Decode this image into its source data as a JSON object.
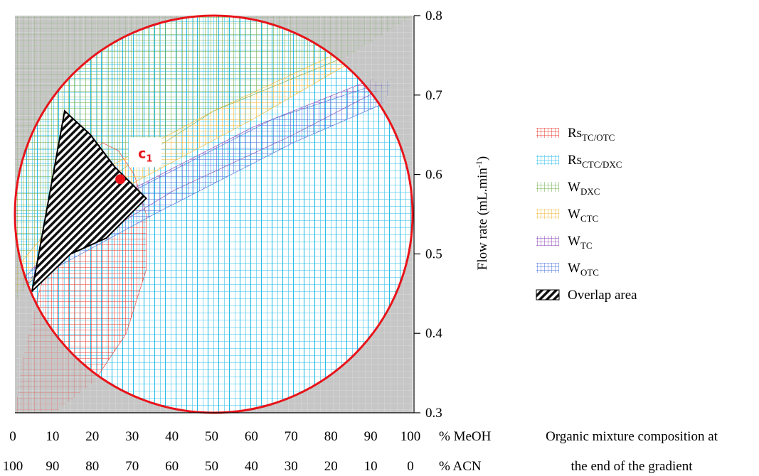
{
  "chart_data": {
    "type": "contour",
    "x_axis": {
      "title": "Organic mixture composition at the end of the gradient",
      "title_lines": [
        "Organic mixture composition at",
        "the end of the gradient"
      ],
      "primary_label": "% MeOH",
      "secondary_label": "% ACN",
      "range": [
        0,
        100
      ],
      "ticks": [
        0,
        10,
        20,
        30,
        40,
        50,
        60,
        70,
        80,
        90,
        100
      ],
      "primary_tick_labels": [
        "0",
        "10",
        "20",
        "30",
        "40",
        "50",
        "60",
        "70",
        "80",
        "90",
        "100"
      ],
      "secondary_tick_labels": [
        "100",
        "90",
        "80",
        "70",
        "60",
        "50",
        "40",
        "30",
        "20",
        "10",
        "0"
      ]
    },
    "y_axis": {
      "title_main": "Flow rate (mL.min",
      "title_sup": "-1",
      "title_end": ")",
      "range": [
        0.3,
        0.8
      ],
      "ticks": [
        0.3,
        0.4,
        0.5,
        0.6,
        0.7,
        0.8
      ],
      "tick_labels": [
        "0.3",
        "0.4",
        "0.5",
        "0.6",
        "0.7",
        "0.8"
      ],
      "position": "right"
    },
    "design_space": {
      "center": [
        50,
        0.55
      ],
      "radius_x": 50,
      "radius_y": 0.25
    },
    "regions": [
      {
        "name": "Rs",
        "sub": "TC/OTC",
        "color": "#e8382e",
        "polygon": [
          [
            0,
            0.3
          ],
          [
            2,
            0.37
          ],
          [
            6,
            0.45
          ],
          [
            10,
            0.52
          ],
          [
            14,
            0.58
          ],
          [
            18,
            0.62
          ],
          [
            22,
            0.64
          ],
          [
            26,
            0.63
          ],
          [
            30,
            0.6
          ],
          [
            33,
            0.55
          ],
          [
            33,
            0.48
          ],
          [
            28,
            0.4
          ],
          [
            20,
            0.34
          ],
          [
            10,
            0.3
          ]
        ]
      },
      {
        "name": "Rs",
        "sub": "CTC/DXC",
        "color": "#29bde9",
        "polygon": [
          [
            0,
            0.3
          ],
          [
            100,
            0.3
          ],
          [
            100,
            0.8
          ],
          [
            0,
            0.8
          ]
        ]
      },
      {
        "name": "W",
        "sub": "DXC",
        "color": "#6aaa45",
        "polygon": [
          [
            0,
            0.44
          ],
          [
            25,
            0.6
          ],
          [
            50,
            0.68
          ],
          [
            84,
            0.75
          ],
          [
            100,
            0.8
          ],
          [
            0,
            0.8
          ]
        ]
      },
      {
        "name": "W",
        "sub": "CTC",
        "color": "#f2b52c",
        "polygon": [
          [
            0,
            0.45
          ],
          [
            30,
            0.59
          ],
          [
            60,
            0.67
          ],
          [
            84,
            0.74
          ],
          [
            80,
            0.75
          ],
          [
            50,
            0.68
          ],
          [
            20,
            0.6
          ],
          [
            0,
            0.48
          ]
        ]
      },
      {
        "name": "W",
        "sub": "TC",
        "color": "#8a3fb0",
        "polygon": [
          [
            4,
            0.47
          ],
          [
            40,
            0.58
          ],
          [
            70,
            0.65
          ],
          [
            93,
            0.71
          ],
          [
            90,
            0.72
          ],
          [
            60,
            0.66
          ],
          [
            25,
            0.57
          ],
          [
            4,
            0.48
          ]
        ]
      },
      {
        "name": "W",
        "sub": "OTC",
        "color": "#4a6fd8",
        "polygon": [
          [
            2,
            0.46
          ],
          [
            35,
            0.55
          ],
          [
            70,
            0.64
          ],
          [
            93,
            0.69
          ],
          [
            95,
            0.72
          ],
          [
            65,
            0.67
          ],
          [
            30,
            0.58
          ],
          [
            2,
            0.47
          ]
        ]
      }
    ],
    "overlap_area": {
      "name": "Overlap area",
      "polygon": [
        [
          12.5,
          0.68
        ],
        [
          19,
          0.65
        ],
        [
          25,
          0.61
        ],
        [
          33,
          0.57
        ],
        [
          23,
          0.52
        ],
        [
          14,
          0.5
        ],
        [
          4.3,
          0.453
        ]
      ]
    },
    "annotations": [
      {
        "label": "c",
        "sub": "1",
        "point": [
          26.5,
          0.594
        ],
        "color": "#e8141a"
      }
    ],
    "legend": {
      "placement": "right"
    },
    "background_color": "#c6c6c6",
    "boundary_color": "#e8141a"
  }
}
